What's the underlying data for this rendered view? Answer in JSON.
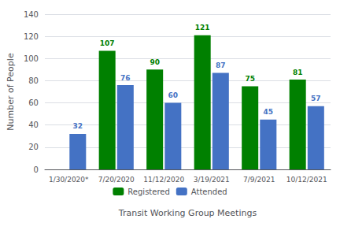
{
  "chart_data": {
    "type": "bar",
    "categories": [
      "1/30/2020*",
      "7/20/2020",
      "11/12/2020",
      "3/19/2021",
      "7/9/2021",
      "10/12/2021"
    ],
    "series": [
      {
        "name": "Registered",
        "color": "#008000",
        "values": [
          null,
          107,
          90,
          121,
          75,
          81
        ]
      },
      {
        "name": "Attended",
        "color": "#4472C4",
        "values": [
          32,
          76,
          60,
          87,
          45,
          57
        ]
      }
    ],
    "xlabel": "Transit Working Group Meetings",
    "ylabel": "Number of People",
    "ylim": [
      0,
      140
    ],
    "yticks": [
      0,
      20,
      40,
      60,
      80,
      100,
      120,
      140
    ],
    "grid": true,
    "legend": "bottom",
    "data_labels": true
  }
}
